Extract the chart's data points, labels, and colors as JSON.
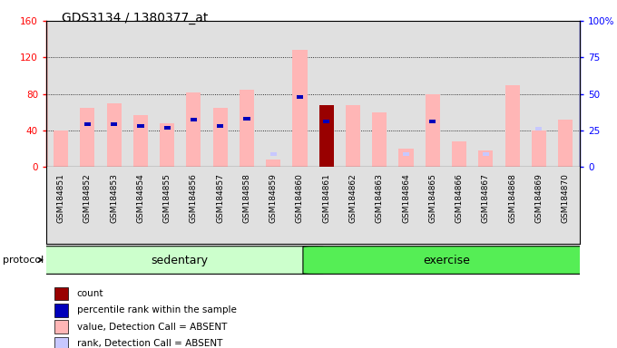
{
  "title": "GDS3134 / 1380377_at",
  "samples": [
    "GSM184851",
    "GSM184852",
    "GSM184853",
    "GSM184854",
    "GSM184855",
    "GSM184856",
    "GSM184857",
    "GSM184858",
    "GSM184859",
    "GSM184860",
    "GSM184861",
    "GSM184862",
    "GSM184863",
    "GSM184864",
    "GSM184865",
    "GSM184866",
    "GSM184867",
    "GSM184868",
    "GSM184869",
    "GSM184870"
  ],
  "value_absent": [
    40,
    65,
    70,
    57,
    48,
    82,
    65,
    85,
    8,
    128,
    0,
    68,
    60,
    20,
    80,
    28,
    18,
    90,
    40,
    52
  ],
  "count_value": [
    0,
    0,
    0,
    0,
    0,
    0,
    0,
    0,
    0,
    0,
    68,
    0,
    0,
    0,
    0,
    0,
    0,
    0,
    0,
    0
  ],
  "percentile_value": [
    0,
    47,
    47,
    45,
    43,
    52,
    45,
    53,
    0,
    77,
    50,
    0,
    0,
    0,
    50,
    0,
    0,
    0,
    0,
    0
  ],
  "rank_absent_dot": [
    0,
    47,
    47,
    45,
    43,
    52,
    45,
    53,
    14,
    77,
    0,
    0,
    0,
    14,
    0,
    0,
    14,
    0,
    42,
    0
  ],
  "sedentary_label": "sedentary",
  "exercise_label": "exercise",
  "protocol_label": "protocol",
  "ylim_left": [
    0,
    160
  ],
  "ylim_right": [
    0,
    100
  ],
  "yticks_left": [
    0,
    40,
    80,
    120,
    160
  ],
  "yticks_right": [
    0,
    25,
    50,
    75,
    100
  ],
  "ytick_right_labels": [
    "0",
    "25",
    "50",
    "75",
    "100%"
  ],
  "color_value_absent": "#FFB6B6",
  "color_rank_absent": "#C8C8FF",
  "color_count": "#990000",
  "color_percentile": "#0000BB",
  "color_sedentary_bg": "#CCFFCC",
  "color_exercise_bg": "#55EE55",
  "bar_width": 0.55,
  "legend_items": [
    {
      "label": "count",
      "color": "#990000"
    },
    {
      "label": "percentile rank within the sample",
      "color": "#0000BB"
    },
    {
      "label": "value, Detection Call = ABSENT",
      "color": "#FFB6B6"
    },
    {
      "label": "rank, Detection Call = ABSENT",
      "color": "#C8C8FF"
    }
  ]
}
